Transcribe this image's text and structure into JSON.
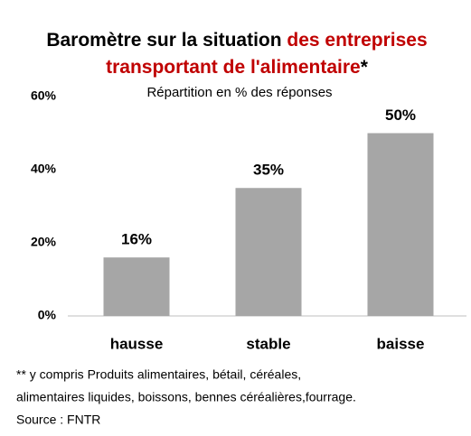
{
  "chart_data": {
    "type": "bar",
    "title": [
      {
        "text": "Baromètre sur la situation ",
        "color": "#000000"
      },
      {
        "text": "des entreprises",
        "color": "#c00000"
      },
      {
        "text": "transportant de l'alimentaire",
        "color": "#c00000"
      },
      {
        "text": "*",
        "color": "#000000"
      }
    ],
    "subtitle": "Répartition en % des réponses",
    "categories": [
      "hausse",
      "stable",
      "baisse"
    ],
    "values": [
      16,
      35,
      50
    ],
    "value_labels": [
      "16%",
      "35%",
      "50%"
    ],
    "color": "#a6a6a6",
    "ylim": [
      0,
      60
    ],
    "yticks": [
      {
        "value": 0,
        "label": "0%"
      },
      {
        "value": 20,
        "label": "20%"
      },
      {
        "value": 40,
        "label": "40%"
      },
      {
        "value": 60,
        "label": "60%"
      }
    ],
    "grid": false,
    "notes": [
      "** y compris  Produits alimentaires, bétail, céréales,",
      "alimentaires liquides, boissons, bennes céréalières,fourrage.",
      "Source : FNTR"
    ]
  }
}
